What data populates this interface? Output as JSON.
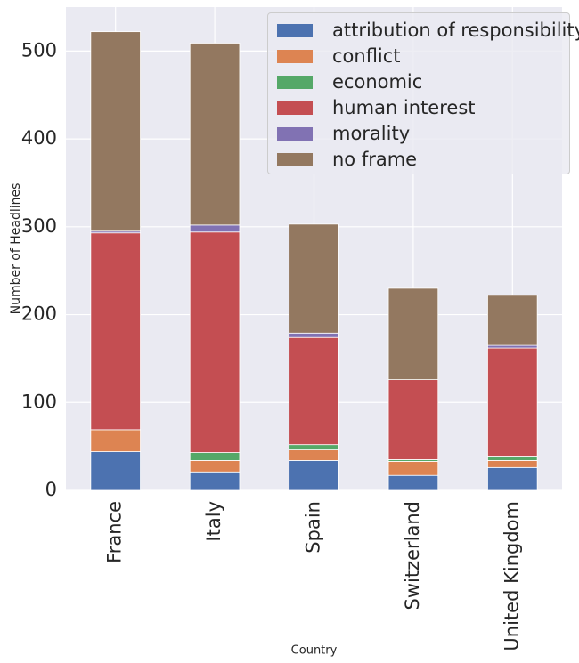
{
  "chart_data": {
    "type": "bar",
    "stacked": true,
    "title": "",
    "xlabel": "Country",
    "ylabel": "Number of Headlines",
    "ylim": [
      0,
      550
    ],
    "yticks": [
      0,
      100,
      200,
      300,
      400,
      500
    ],
    "ytick_labels": [
      "0",
      "100",
      "200",
      "300",
      "400",
      "500"
    ],
    "grid": true,
    "legend_position": "top-right",
    "categories": [
      "France",
      "Italy",
      "Spain",
      "Switzerland",
      "United Kingdom"
    ],
    "series": [
      {
        "name": "attribution of responsibility",
        "color": "#4c72b0",
        "values": [
          44,
          21,
          34,
          17,
          26
        ]
      },
      {
        "name": "conflict",
        "color": "#dd8452",
        "values": [
          25,
          13,
          12,
          16,
          8
        ]
      },
      {
        "name": "economic",
        "color": "#55a868",
        "values": [
          0,
          9,
          6,
          2,
          5
        ]
      },
      {
        "name": "human interest",
        "color": "#c44e52",
        "values": [
          224,
          251,
          122,
          91,
          123
        ]
      },
      {
        "name": "morality",
        "color": "#8172b3",
        "values": [
          2,
          8,
          5,
          0,
          3
        ]
      },
      {
        "name": "no frame",
        "color": "#937860",
        "values": [
          227,
          207,
          124,
          104,
          57
        ]
      }
    ]
  }
}
